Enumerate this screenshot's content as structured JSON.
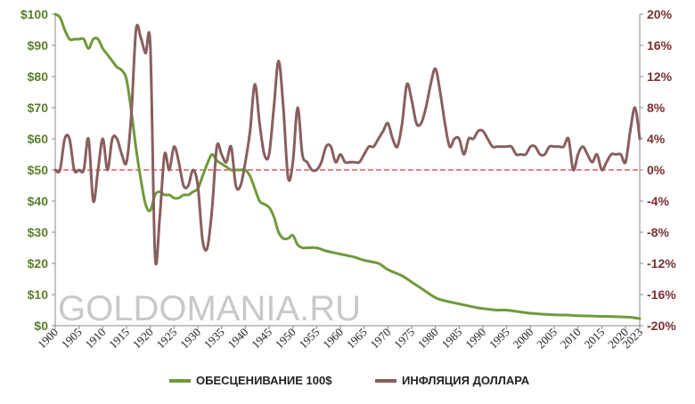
{
  "watermark": "GOLDOMANIA.RU",
  "chart_data": {
    "type": "line",
    "x_ticks": [
      "1900",
      "1905",
      "1910",
      "1915",
      "1920",
      "1925",
      "1930",
      "1935",
      "1940",
      "1945",
      "1950",
      "1955",
      "1960",
      "1965",
      "1970",
      "1975",
      "1980",
      "1985",
      "1990",
      "1995",
      "2000",
      "2005",
      "2010",
      "2015",
      "2020",
      "2023"
    ],
    "x_range": [
      1900,
      2023
    ],
    "y_left_ticks": [
      "$0",
      "$10",
      "$20",
      "$30",
      "$40",
      "$50",
      "$60",
      "$70",
      "$80",
      "$90",
      "$100"
    ],
    "y_left_range": [
      0,
      100
    ],
    "y_right_ticks": [
      "-20%",
      "-16%",
      "-12%",
      "-8%",
      "-4%",
      "0%",
      "4%",
      "8%",
      "12%",
      "16%",
      "20%"
    ],
    "y_right_range": [
      -20,
      20
    ],
    "grid": false,
    "zero_line_color": "#e05a5a",
    "legend_position": "bottom",
    "series": [
      {
        "name": "ОБЕСЦЕНИВАНИЕ 100$",
        "axis": "left",
        "color": "#6f9a3a",
        "x": [
          1900,
          1901,
          1902,
          1903,
          1904,
          1905,
          1906,
          1907,
          1908,
          1909,
          1910,
          1911,
          1912,
          1913,
          1914,
          1915,
          1916,
          1917,
          1918,
          1919,
          1920,
          1921,
          1922,
          1923,
          1924,
          1925,
          1926,
          1927,
          1928,
          1929,
          1930,
          1931,
          1932,
          1933,
          1934,
          1935,
          1936,
          1937,
          1938,
          1939,
          1940,
          1941,
          1942,
          1943,
          1944,
          1945,
          1946,
          1947,
          1948,
          1949,
          1950,
          1951,
          1952,
          1953,
          1955,
          1957,
          1960,
          1963,
          1965,
          1968,
          1970,
          1973,
          1975,
          1977,
          1980,
          1982,
          1985,
          1988,
          1990,
          1993,
          1995,
          2000,
          2005,
          2008,
          2010,
          2013,
          2015,
          2018,
          2020,
          2021,
          2022,
          2023
        ],
        "y": [
          100,
          99,
          95,
          92,
          92,
          92,
          92,
          89,
          92,
          92,
          89,
          87,
          85,
          83,
          82,
          79,
          69,
          57,
          47,
          39,
          37,
          42,
          43,
          42,
          42,
          41,
          41,
          42,
          42,
          43,
          44,
          48,
          52,
          55,
          53,
          52,
          51,
          50,
          50,
          50,
          50,
          48,
          44,
          40,
          39,
          38,
          35,
          30,
          28,
          28,
          29,
          26,
          25,
          25,
          25,
          24,
          23,
          22,
          21,
          20,
          18,
          16,
          14,
          12,
          9,
          8,
          7,
          6,
          5.5,
          5,
          5,
          4,
          3.5,
          3.4,
          3.2,
          3.1,
          3,
          2.9,
          2.8,
          2.7,
          2.5,
          2.3
        ]
      },
      {
        "name": "ИНФЛЯЦИЯ ДОЛЛАРА",
        "axis": "right",
        "color": "#8a5e5e",
        "x": [
          1900,
          1901,
          1902,
          1903,
          1904,
          1905,
          1906,
          1907,
          1908,
          1909,
          1910,
          1911,
          1912,
          1913,
          1914,
          1915,
          1916,
          1917,
          1918,
          1919,
          1920,
          1921,
          1922,
          1923,
          1924,
          1925,
          1926,
          1927,
          1928,
          1929,
          1930,
          1931,
          1932,
          1933,
          1934,
          1935,
          1936,
          1937,
          1938,
          1939,
          1940,
          1941,
          1942,
          1943,
          1944,
          1945,
          1946,
          1947,
          1948,
          1949,
          1950,
          1951,
          1952,
          1953,
          1954,
          1955,
          1956,
          1957,
          1958,
          1959,
          1960,
          1961,
          1962,
          1963,
          1964,
          1965,
          1966,
          1967,
          1968,
          1969,
          1970,
          1971,
          1972,
          1973,
          1974,
          1975,
          1976,
          1977,
          1978,
          1979,
          1980,
          1981,
          1982,
          1983,
          1984,
          1985,
          1986,
          1987,
          1988,
          1989,
          1990,
          1991,
          1992,
          1993,
          1994,
          1995,
          1996,
          1997,
          1998,
          1999,
          2000,
          2001,
          2002,
          2003,
          2004,
          2005,
          2006,
          2007,
          2008,
          2009,
          2010,
          2011,
          2012,
          2013,
          2014,
          2015,
          2016,
          2017,
          2018,
          2019,
          2020,
          2021,
          2022,
          2023
        ],
        "y": [
          0,
          0,
          4,
          4,
          0,
          0,
          0,
          4,
          -4,
          0,
          4,
          0,
          4,
          4,
          2,
          1,
          7,
          18,
          17,
          15,
          16,
          -11,
          -6,
          2,
          0,
          3,
          1,
          -2,
          -2,
          0,
          -2,
          -9,
          -10,
          -5,
          3,
          2,
          1,
          3,
          -2,
          -2,
          1,
          5,
          11,
          6,
          2,
          2,
          8,
          14,
          8,
          -1,
          1,
          8,
          2,
          1,
          0,
          0,
          1,
          3,
          3,
          1,
          2,
          1,
          1,
          1,
          1,
          2,
          3,
          3,
          4,
          5,
          6,
          4,
          3,
          6,
          11,
          9,
          6,
          6,
          8,
          11,
          13,
          10,
          6,
          3,
          4,
          4,
          2,
          4,
          4,
          5,
          5,
          4,
          3,
          3,
          3,
          3,
          3,
          2,
          2,
          2,
          3,
          3,
          2,
          2,
          3,
          3,
          3,
          3,
          4,
          0,
          2,
          3,
          2,
          1,
          2,
          0,
          1,
          2,
          2,
          2,
          1,
          5,
          8,
          4
        ]
      }
    ]
  }
}
